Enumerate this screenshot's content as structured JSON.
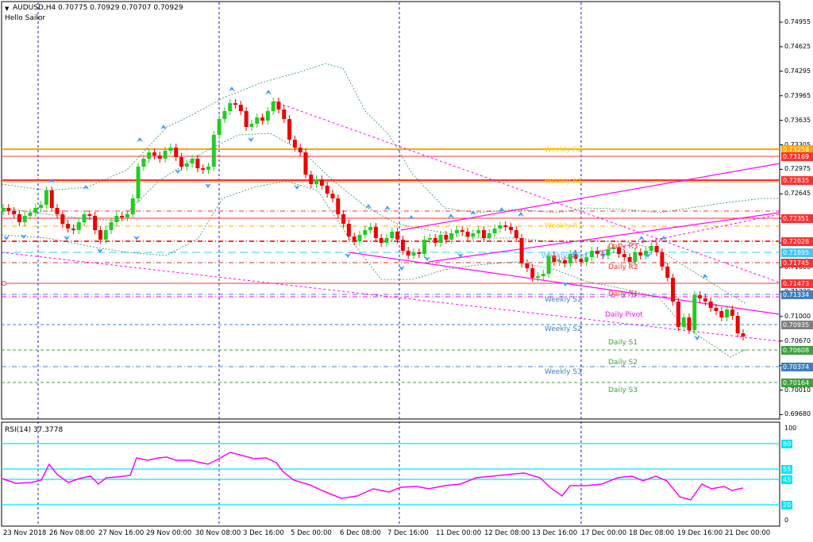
{
  "header": {
    "menu_arrow": "triangle-down-icon",
    "symbol_line": "AUDUSD,H4  0.70775 0.70929 0.70707 0.70929",
    "ea_name": "Hello Sailor"
  },
  "price_axis": {
    "ticks": [
      "0.74955",
      "0.74625",
      "0.74295",
      "0.73965",
      "0.73635",
      "0.73305",
      "0.72975",
      "0.72645",
      "0.72315",
      "0.71985",
      "0.71660",
      "0.71330",
      "0.71000",
      "0.70670",
      "0.70340",
      "0.70010",
      "0.69680"
    ]
  },
  "price_labels": [
    {
      "text": "0.73258",
      "color": "#ffa500"
    },
    {
      "text": "0.73169",
      "color": "#ff3030"
    },
    {
      "text": "0.72835",
      "color": "#ff3030"
    },
    {
      "text": "0.72351",
      "color": "#ff3030"
    },
    {
      "text": "0.72028",
      "color": "#ff3030"
    },
    {
      "text": "0.71895",
      "color": "#40c8ff"
    },
    {
      "text": "0.71745",
      "color": "#ff3030"
    },
    {
      "text": "0.71473",
      "color": "#ff3030"
    },
    {
      "text": "0.71334",
      "color": "#4080c0"
    },
    {
      "text": "0.70935",
      "color": "#808080"
    },
    {
      "text": "0.70608",
      "color": "#40a040"
    },
    {
      "text": "0.70374",
      "color": "#4080c0"
    },
    {
      "text": "0.70164",
      "color": "#40a040"
    }
  ],
  "level_labels": {
    "weekly_r2": "Weekly R2",
    "weekly_r1": "Weekly R1",
    "weekly_r_low": "Weekly R1",
    "daily_r3": "Daily R3",
    "weekly_pivot": "Weekly Pivot",
    "daily_r2": "Daily R2",
    "daily_r1": "Daily R1",
    "weekly_s1": "Weekly S1",
    "daily_pivot": "Daily Pivot",
    "weekly_s2": "Weekly S2",
    "daily_s1": "Daily S1",
    "daily_s2": "Daily S2",
    "weekly_s3": "Weekly S3",
    "daily_s3": "Daily S3"
  },
  "rsi": {
    "title": "RSI(14) 37.3778",
    "axis_ticks": [
      "100",
      "0"
    ],
    "levels": [
      "80",
      "55",
      "45",
      "20"
    ],
    "level_color": "#00e5ff",
    "line_color": "#ff00ff"
  },
  "time_axis": [
    "23 Nov 2018",
    "26 Nov 08:00",
    "27 Nov 16:00",
    "29 Nov 00:00",
    "30 Nov 08:00",
    "3 Dec 16:00",
    "5 Dec 00:00",
    "6 Dec 08:00",
    "7 Dec 16:00",
    "11 Dec 00:00",
    "12 Dec 08:00",
    "13 Dec 16:00",
    "17 Dec 00:00",
    "18 Dec 08:00",
    "19 Dec 16:00",
    "21 Dec 00:00"
  ],
  "colors": {
    "bull": "#22cc22",
    "bear": "#ee0000",
    "bands": "#2e8b57",
    "channel": "#ff00ff",
    "fractal": "#3aa0ff"
  }
}
